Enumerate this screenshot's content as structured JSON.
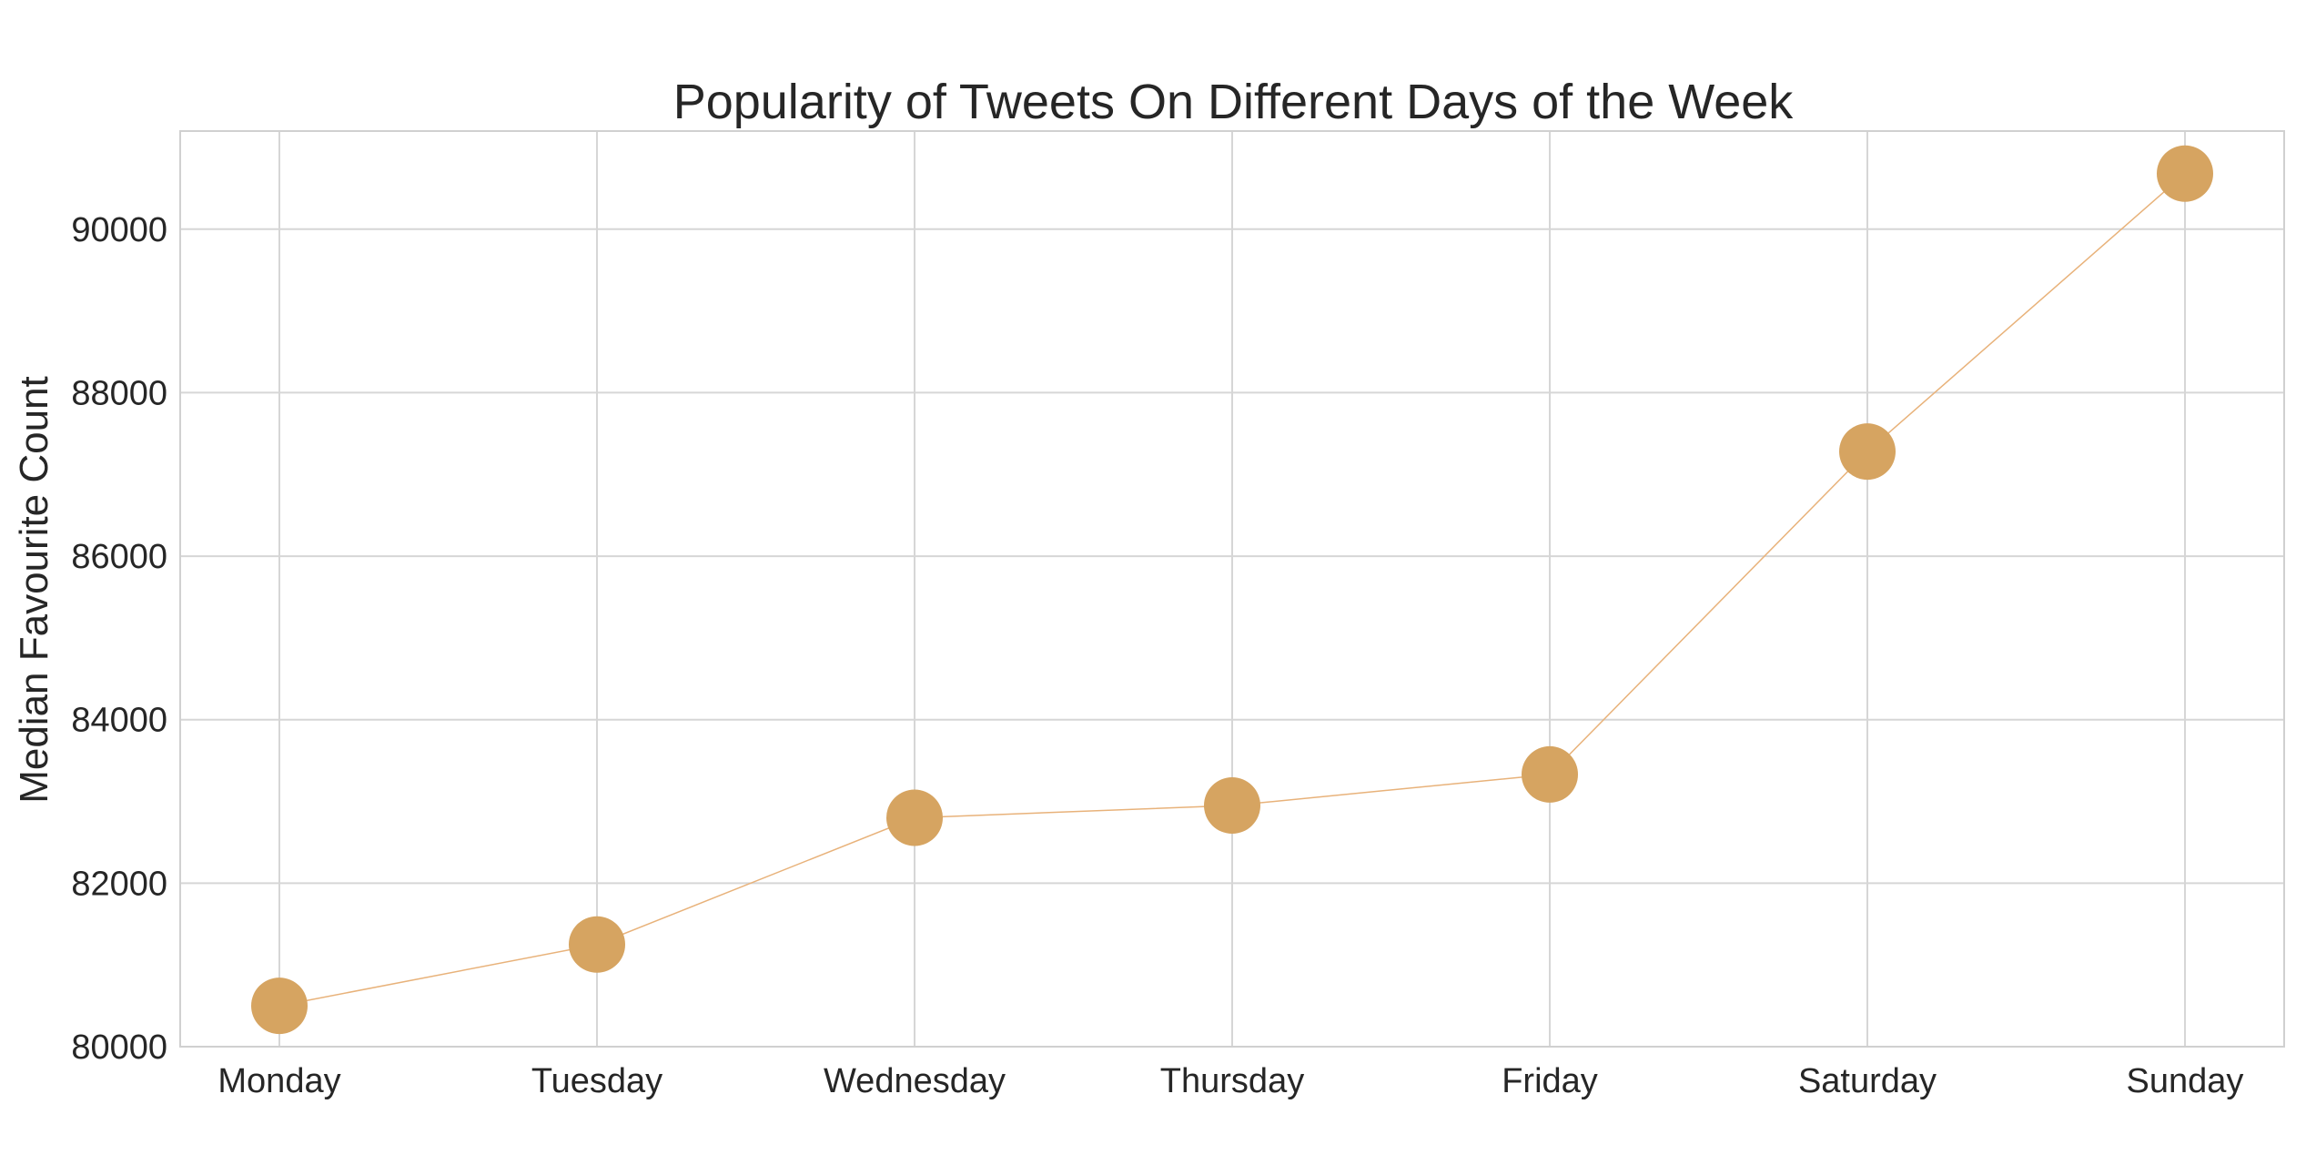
{
  "chart_data": {
    "type": "line",
    "title": "Popularity of Tweets On Different Days of the Week",
    "xlabel": "",
    "ylabel": "Median Favourite Count",
    "categories": [
      "Monday",
      "Tuesday",
      "Wednesday",
      "Thursday",
      "Friday",
      "Saturday",
      "Sunday"
    ],
    "series": [
      {
        "values": [
          80500,
          81250,
          82800,
          82950,
          83330,
          87280,
          90680
        ]
      }
    ],
    "ylim": [
      80000,
      91200
    ],
    "yticks": [
      80000,
      82000,
      84000,
      86000,
      88000,
      90000
    ],
    "ytick_labels": [
      "80000",
      "82000",
      "84000",
      "86000",
      "88000",
      "90000"
    ],
    "grid": true,
    "marker": "circle",
    "colors": {
      "marker": "#d6a461",
      "line": "#e8b27a",
      "grid": "#d6d6d6",
      "text": "#262626"
    }
  }
}
